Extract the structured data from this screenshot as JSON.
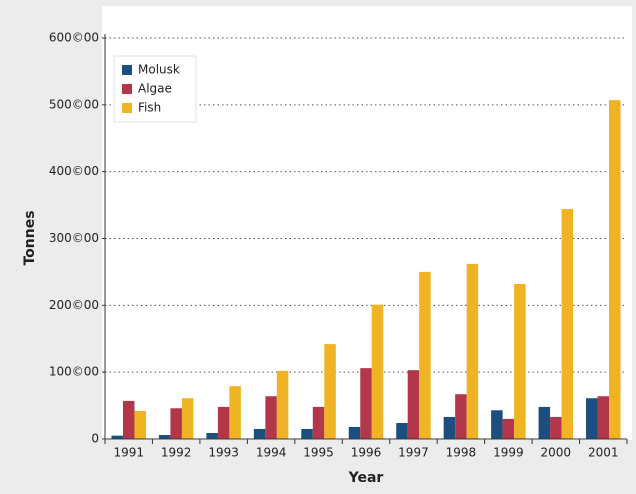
{
  "chart_data": {
    "type": "bar",
    "x_label": "Year",
    "y_label": "Tonnes",
    "categories": [
      "1991",
      "1992",
      "1993",
      "1994",
      "1995",
      "1996",
      "1997",
      "1998",
      "1999",
      "2000",
      "2001"
    ],
    "series": [
      {
        "name": "Molusk",
        "color": "#1c4f7f",
        "values": [
          5000,
          6000,
          9000,
          15000,
          15000,
          18000,
          24000,
          33000,
          43000,
          48000,
          61000
        ]
      },
      {
        "name": "Algae",
        "color": "#b3374a",
        "values": [
          57000,
          46000,
          48000,
          64000,
          48000,
          106000,
          103000,
          67000,
          30000,
          33000,
          64000
        ]
      },
      {
        "name": "Fish",
        "color": "#f0b323",
        "values": [
          42000,
          61000,
          79000,
          102000,
          142000,
          201000,
          250000,
          262000,
          232000,
          344000,
          507000
        ]
      }
    ],
    "ylim": [
      0,
      600000
    ],
    "yticks": [
      0,
      {
        "value": 100000,
        "label": "100©00"
      },
      {
        "value": 200000,
        "label": "200©00"
      },
      {
        "value": 300000,
        "label": "300©00"
      },
      {
        "value": 400000,
        "label": "400©00"
      },
      {
        "value": 500000,
        "label": "500©00"
      },
      {
        "value": 600000,
        "label": "600©00"
      }
    ],
    "grid": true,
    "legend": "upper left"
  }
}
